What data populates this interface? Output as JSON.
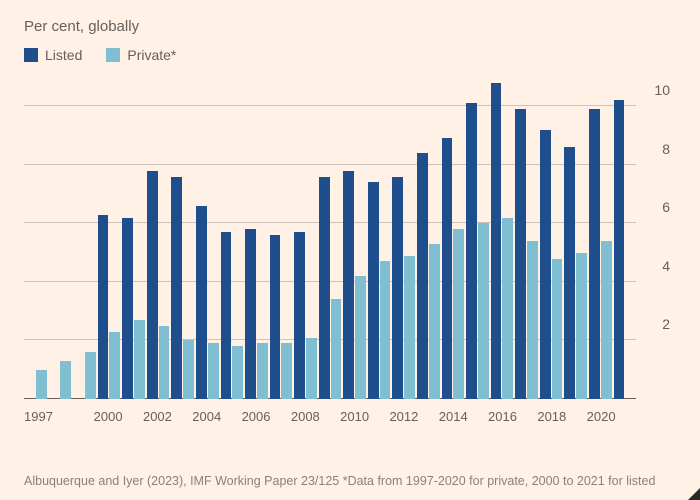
{
  "subtitle": "Per cent, globally",
  "legend": {
    "listed": {
      "label": "Listed",
      "color": "#1f4e8c"
    },
    "private": {
      "label": "Private*",
      "color": "#7fbfd1"
    }
  },
  "chart": {
    "type": "bar",
    "background_color": "#fff1e5",
    "grid_color": "#ccc4bc",
    "baseline_color": "#66605c",
    "ylim": [
      0,
      11
    ],
    "ytick_step": 2,
    "yticks": [
      0,
      2,
      4,
      6,
      8,
      10
    ],
    "label_fontsize": 14,
    "label_color": "#66605c",
    "bar_gap": 2,
    "series": [
      {
        "key": "listed",
        "color": "#1f4e8c"
      },
      {
        "key": "private",
        "color": "#7fbfd1"
      }
    ],
    "years": [
      1997,
      1998,
      1999,
      2000,
      2001,
      2002,
      2003,
      2004,
      2005,
      2006,
      2007,
      2008,
      2009,
      2010,
      2011,
      2012,
      2013,
      2014,
      2015,
      2016,
      2017,
      2018,
      2019,
      2020,
      2021
    ],
    "x_tick_labels": [
      "1997",
      "",
      "",
      "2000",
      "",
      "2002",
      "",
      "2004",
      "",
      "2006",
      "",
      "2008",
      "",
      "2010",
      "",
      "2012",
      "",
      "2014",
      "",
      "2016",
      "",
      "2018",
      "",
      "2020",
      ""
    ],
    "listed": [
      null,
      null,
      null,
      6.3,
      6.2,
      7.8,
      7.6,
      6.6,
      5.7,
      5.8,
      5.6,
      5.7,
      7.6,
      7.8,
      7.4,
      7.6,
      8.4,
      8.9,
      10.1,
      10.8,
      9.9,
      9.2,
      8.6,
      9.9,
      10.2
    ],
    "private": [
      1.0,
      1.3,
      1.6,
      2.3,
      2.7,
      2.5,
      2.0,
      1.9,
      1.8,
      1.9,
      1.9,
      2.1,
      3.4,
      4.2,
      4.7,
      4.9,
      5.3,
      5.8,
      6.0,
      6.2,
      5.4,
      4.8,
      5.0,
      5.4,
      null
    ]
  },
  "source": "Albuquerque and Iyer (2023), IMF Working Paper 23/125 *Data from 1997-2020 for private, 2000 to 2021 for listed"
}
